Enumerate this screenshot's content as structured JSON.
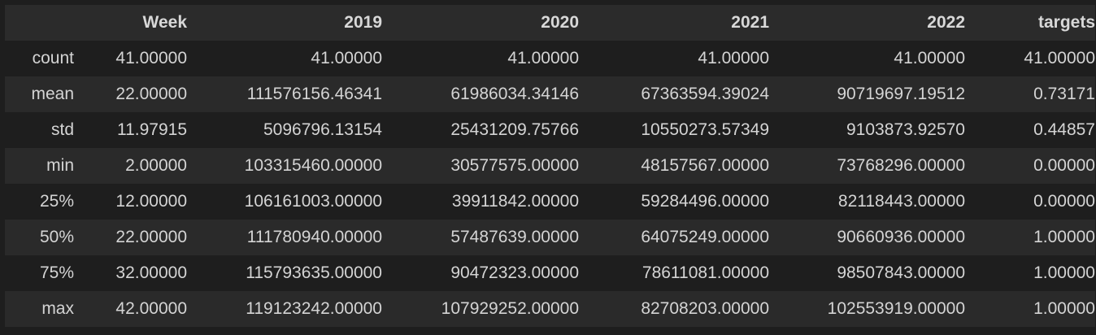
{
  "table": {
    "columns": [
      "",
      "Week",
      "2019",
      "2020",
      "2021",
      "2022",
      "targets"
    ],
    "rows": [
      {
        "label": "count",
        "values": [
          "41.00000",
          "41.00000",
          "41.00000",
          "41.00000",
          "41.00000",
          "41.00000"
        ]
      },
      {
        "label": "mean",
        "values": [
          "22.00000",
          "111576156.46341",
          "61986034.34146",
          "67363594.39024",
          "90719697.19512",
          "0.73171"
        ]
      },
      {
        "label": "std",
        "values": [
          "11.97915",
          "5096796.13154",
          "25431209.75766",
          "10550273.57349",
          "9103873.92570",
          "0.44857"
        ]
      },
      {
        "label": "min",
        "values": [
          "2.00000",
          "103315460.00000",
          "30577575.00000",
          "48157567.00000",
          "73768296.00000",
          "0.00000"
        ]
      },
      {
        "label": "25%",
        "values": [
          "12.00000",
          "106161003.00000",
          "39911842.00000",
          "59284496.00000",
          "82118443.00000",
          "0.00000"
        ]
      },
      {
        "label": "50%",
        "values": [
          "22.00000",
          "111780940.00000",
          "57487639.00000",
          "64075249.00000",
          "90660936.00000",
          "1.00000"
        ]
      },
      {
        "label": "75%",
        "values": [
          "32.00000",
          "115793635.00000",
          "90472323.00000",
          "78611081.00000",
          "98507843.00000",
          "1.00000"
        ]
      },
      {
        "label": "max",
        "values": [
          "42.00000",
          "119123242.00000",
          "107929252.00000",
          "82708203.00000",
          "102553919.00000",
          "1.00000"
        ]
      }
    ]
  }
}
